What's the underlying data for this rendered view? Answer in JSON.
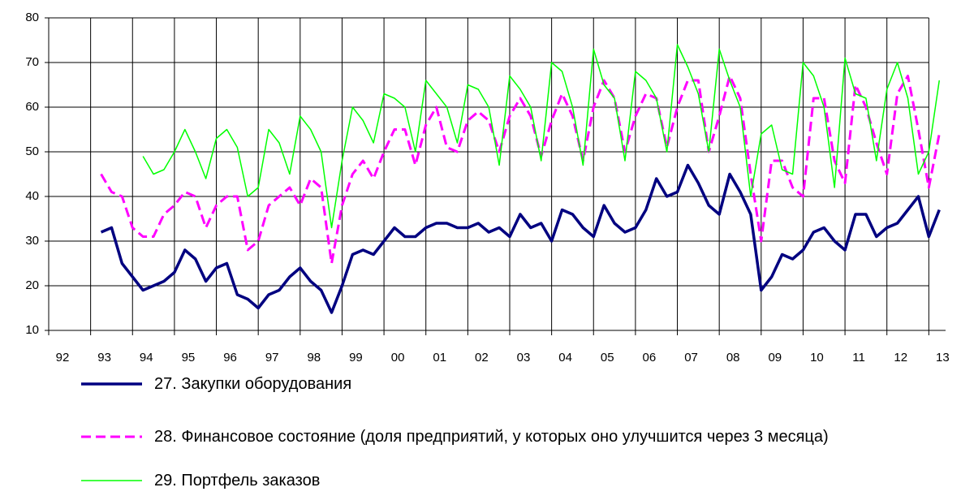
{
  "chart_data": {
    "type": "line",
    "x": [
      1993.25,
      1993.5,
      1993.75,
      1994,
      1994.25,
      1994.5,
      1994.75,
      1995,
      1995.25,
      1995.5,
      1995.75,
      1996,
      1996.25,
      1996.5,
      1996.75,
      1997,
      1997.25,
      1997.5,
      1997.75,
      1998,
      1998.25,
      1998.5,
      1998.75,
      1999,
      1999.25,
      1999.5,
      1999.75,
      2000,
      2000.25,
      2000.5,
      2000.75,
      2001,
      2001.25,
      2001.5,
      2001.75,
      2002,
      2002.25,
      2002.5,
      2002.75,
      2003,
      2003.25,
      2003.5,
      2003.75,
      2004,
      2004.25,
      2004.5,
      2004.75,
      2005,
      2005.25,
      2005.5,
      2005.75,
      2006,
      2006.25,
      2006.5,
      2006.75,
      2007,
      2007.25,
      2007.5,
      2007.75,
      2008,
      2008.25,
      2008.5,
      2008.75,
      2009,
      2009.25,
      2009.5,
      2009.75,
      2010,
      2010.25,
      2010.5,
      2010.75,
      2011,
      2011.25,
      2011.5,
      2011.75,
      2012,
      2012.25,
      2012.5,
      2012.75,
      2013,
      2013.25
    ],
    "series": [
      {
        "name": "27. Закупки оборудования",
        "color": "#000080",
        "width": 3.5,
        "dashed": false,
        "values": [
          32,
          33,
          25,
          22,
          19,
          20,
          21,
          23,
          28,
          26,
          21,
          24,
          25,
          18,
          17,
          15,
          18,
          19,
          22,
          24,
          21,
          19,
          14,
          20,
          27,
          28,
          27,
          30,
          33,
          31,
          31,
          33,
          34,
          34,
          33,
          33,
          34,
          32,
          33,
          31,
          36,
          33,
          34,
          30,
          37,
          36,
          33,
          31,
          38,
          34,
          32,
          33,
          37,
          44,
          40,
          41,
          47,
          43,
          38,
          36,
          45,
          41,
          36,
          19,
          22,
          27,
          26,
          28,
          32,
          33,
          30,
          28,
          36,
          36,
          31,
          33,
          34,
          37,
          40,
          31,
          37
        ]
      },
      {
        "name": "28. Финансовое состояние (доля предприятий, у которых оно улучшится через 3 месяца)",
        "color": "#ff00ff",
        "width": 3,
        "dashed": true,
        "values": [
          45,
          41,
          40,
          33,
          31,
          31,
          36,
          38,
          41,
          40,
          33,
          38,
          40,
          40,
          28,
          30,
          38,
          40,
          42,
          38,
          44,
          42,
          25,
          38,
          45,
          48,
          44,
          50,
          55,
          55,
          47,
          56,
          60,
          51,
          50,
          57,
          59,
          57,
          50,
          58,
          62,
          58,
          49,
          57,
          63,
          58,
          48,
          60,
          66,
          62,
          50,
          58,
          63,
          62,
          51,
          60,
          66,
          66,
          50,
          58,
          67,
          62,
          45,
          30,
          48,
          48,
          42,
          40,
          62,
          62,
          48,
          43,
          65,
          60,
          52,
          45,
          63,
          67,
          55,
          42,
          54
        ]
      },
      {
        "name": "29. Портфель заказов",
        "color": "#00ff00",
        "width": 1.5,
        "dashed": false,
        "values": [
          null,
          null,
          null,
          null,
          49,
          45,
          46,
          50,
          55,
          50,
          44,
          53,
          55,
          51,
          40,
          42,
          55,
          52,
          45,
          58,
          55,
          50,
          33,
          48,
          60,
          57,
          52,
          63,
          62,
          60,
          50,
          66,
          63,
          60,
          52,
          65,
          64,
          60,
          47,
          67,
          64,
          60,
          48,
          70,
          68,
          60,
          47,
          73,
          65,
          62,
          48,
          68,
          66,
          62,
          50,
          74,
          69,
          63,
          50,
          73,
          66,
          60,
          40,
          54,
          56,
          46,
          45,
          70,
          67,
          60,
          42,
          71,
          63,
          62,
          48,
          64,
          70,
          62,
          45,
          50,
          66
        ]
      }
    ],
    "xlim": [
      1992,
      2013.4
    ],
    "xticks": [
      {
        "value": 1992,
        "label": "92"
      },
      {
        "value": 1993,
        "label": "93"
      },
      {
        "value": 1994,
        "label": "94"
      },
      {
        "value": 1995,
        "label": "95"
      },
      {
        "value": 1996,
        "label": "96"
      },
      {
        "value": 1997,
        "label": "97"
      },
      {
        "value": 1998,
        "label": "98"
      },
      {
        "value": 1999,
        "label": "99"
      },
      {
        "value": 2000,
        "label": "00"
      },
      {
        "value": 2001,
        "label": "01"
      },
      {
        "value": 2002,
        "label": "02"
      },
      {
        "value": 2003,
        "label": "03"
      },
      {
        "value": 2004,
        "label": "04"
      },
      {
        "value": 2005,
        "label": "05"
      },
      {
        "value": 2006,
        "label": "06"
      },
      {
        "value": 2007,
        "label": "07"
      },
      {
        "value": 2008,
        "label": "08"
      },
      {
        "value": 2009,
        "label": "09"
      },
      {
        "value": 2010,
        "label": "10"
      },
      {
        "value": 2011,
        "label": "11"
      },
      {
        "value": 2012,
        "label": "12"
      },
      {
        "value": 2013,
        "label": "13"
      }
    ],
    "ylim": [
      10,
      80
    ],
    "yticks": [
      10,
      20,
      30,
      40,
      50,
      60,
      70,
      80
    ],
    "grid": true
  }
}
